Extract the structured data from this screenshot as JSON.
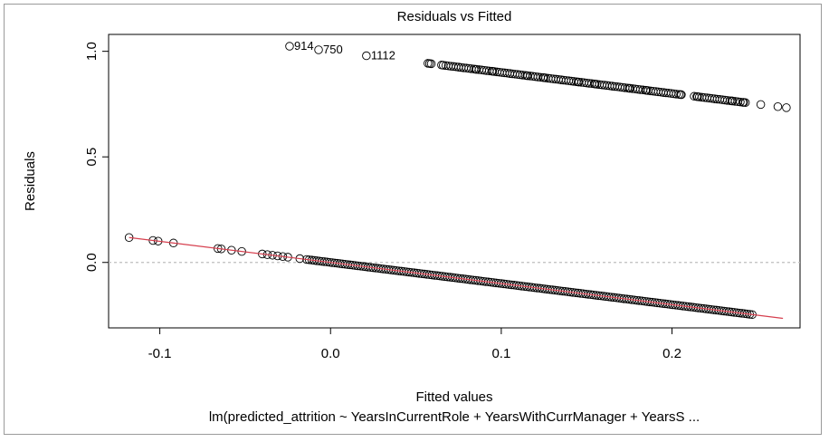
{
  "chart_data": {
    "type": "scatter",
    "title": "Residuals vs Fitted",
    "xlabel": "Fitted values",
    "ylabel": "Residuals",
    "subtitle": "lm(predicted_attrition ~ YearsInCurrentRole + YearsWithCurrManager + YearsS ...",
    "xlim": [
      -0.13,
      0.275
    ],
    "ylim": [
      -0.31,
      1.08
    ],
    "xticks": [
      {
        "value": -0.1,
        "label": "-0.1"
      },
      {
        "value": 0.0,
        "label": "0.0"
      },
      {
        "value": 0.1,
        "label": "0.1"
      },
      {
        "value": 0.2,
        "label": "0.2"
      }
    ],
    "yticks": [
      {
        "value": 0.0,
        "label": "0.0"
      },
      {
        "value": 0.5,
        "label": "0.5"
      },
      {
        "value": 1.0,
        "label": "1.0"
      }
    ],
    "reference_line": {
      "y": 0,
      "style": "dotted",
      "color": "#bdbdbd"
    },
    "smooth_line": {
      "color": "#d6404f",
      "points": [
        [
          -0.118,
          0.118
        ],
        [
          0.265,
          -0.265
        ]
      ]
    },
    "series": [
      {
        "points": [
          [
            -0.118,
            0.118
          ],
          [
            -0.104,
            0.104
          ],
          [
            -0.101,
            0.101
          ],
          [
            -0.092,
            0.092
          ],
          [
            -0.066,
            0.066
          ],
          [
            -0.064,
            0.064
          ],
          [
            -0.058,
            0.058
          ],
          [
            -0.052,
            0.052
          ],
          [
            -0.04,
            0.04
          ],
          [
            -0.037,
            0.037
          ],
          [
            -0.034,
            0.034
          ],
          [
            -0.031,
            0.031
          ],
          [
            -0.028,
            0.028
          ],
          [
            -0.025,
            0.025
          ],
          [
            -0.018,
            0.018
          ],
          [
            0.057,
            0.943
          ],
          [
            0.058,
            0.942
          ],
          [
            0.059,
            0.941
          ],
          [
            0.065,
            0.935
          ],
          [
            0.075,
            0.925
          ],
          [
            0.085,
            0.915
          ],
          [
            0.095,
            0.905
          ],
          [
            0.105,
            0.895
          ],
          [
            0.115,
            0.885
          ],
          [
            0.125,
            0.875
          ],
          [
            0.135,
            0.865
          ],
          [
            0.145,
            0.855
          ],
          [
            0.155,
            0.845
          ],
          [
            0.165,
            0.835
          ],
          [
            0.175,
            0.825
          ],
          [
            0.185,
            0.815
          ],
          [
            0.195,
            0.805
          ],
          [
            0.205,
            0.795
          ],
          [
            0.215,
            0.785
          ],
          [
            0.225,
            0.775
          ],
          [
            0.235,
            0.765
          ],
          [
            0.242,
            0.758
          ],
          [
            0.252,
            0.748
          ],
          [
            0.262,
            0.738
          ],
          [
            0.267,
            0.733
          ]
        ],
        "dense_segments": [
          {
            "x_from": -0.014,
            "x_to": 0.248,
            "intercept": 0,
            "slope": -1
          },
          {
            "x_from": 0.066,
            "x_to": 0.206,
            "intercept": 1,
            "slope": -1
          },
          {
            "x_from": 0.213,
            "x_to": 0.244,
            "intercept": 1,
            "slope": -1
          }
        ]
      }
    ],
    "labeled_points": [
      {
        "label": "914",
        "x": -0.024,
        "y": 1.024
      },
      {
        "label": "750",
        "x": -0.007,
        "y": 1.007
      },
      {
        "label": "1112",
        "x": 0.021,
        "y": 0.979
      }
    ]
  }
}
